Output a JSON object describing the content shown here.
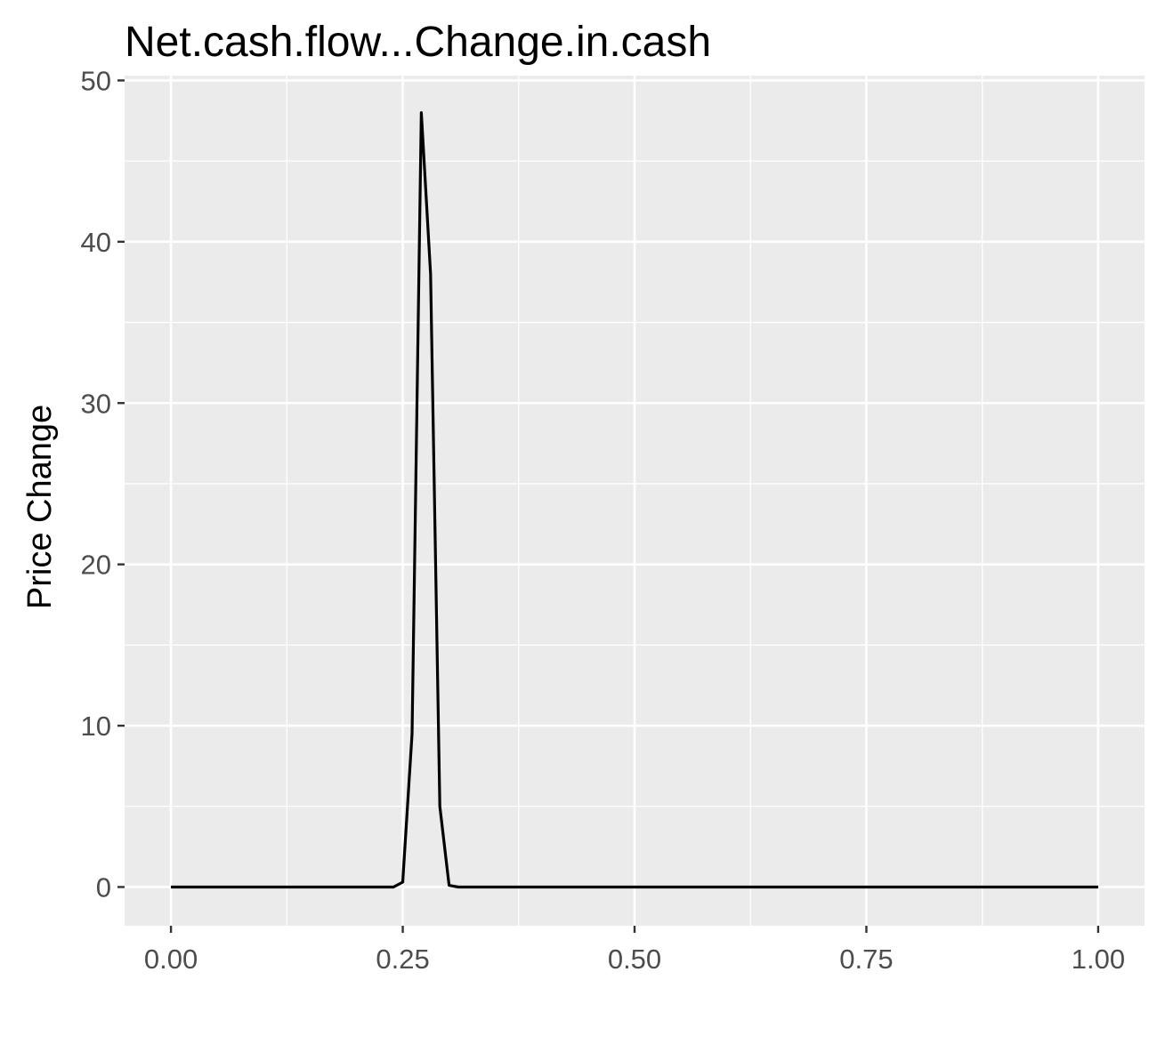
{
  "chart_data": {
    "type": "line",
    "title": "Net.cash.flow...Change.in.cash",
    "xlabel": "",
    "ylabel": "Price Change",
    "xlim": [
      -0.05,
      1.05
    ],
    "ylim": [
      -2.4,
      50.3
    ],
    "x_ticks": [
      0.0,
      0.25,
      0.5,
      0.75,
      1.0
    ],
    "x_tick_labels": [
      "0.00",
      "0.25",
      "0.50",
      "0.75",
      "1.00"
    ],
    "y_ticks": [
      0,
      10,
      20,
      30,
      40,
      50
    ],
    "y_tick_labels": [
      "0",
      "10",
      "20",
      "30",
      "40",
      "50"
    ],
    "grid": true,
    "background": "#ebebeb",
    "grid_color": "#ffffff",
    "line_color": "#000000",
    "series": [
      {
        "x": [
          0.0,
          0.1,
          0.2,
          0.24,
          0.25,
          0.26,
          0.27,
          0.28,
          0.29,
          0.3,
          0.31,
          0.4,
          0.5,
          0.75,
          1.0
        ],
        "values": [
          0,
          0,
          0,
          0,
          0.3,
          9.5,
          48,
          38,
          5,
          0.1,
          0,
          0,
          0,
          0,
          0
        ]
      }
    ]
  }
}
